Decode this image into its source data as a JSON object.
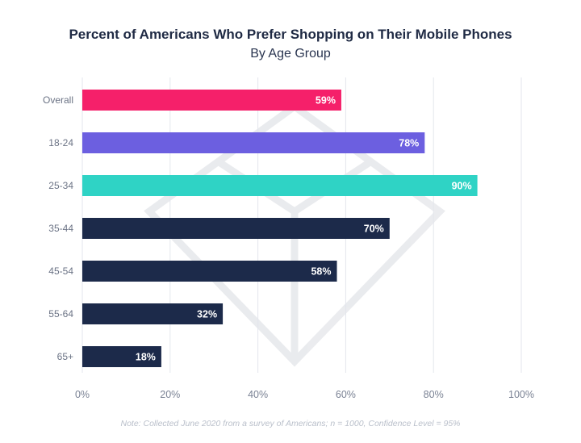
{
  "chart_data": {
    "type": "bar",
    "orientation": "horizontal",
    "title": "Percent of Americans Who Prefer Shopping on Their Mobile Phones",
    "subtitle": "By Age Group",
    "categories": [
      "Overall",
      "18-24",
      "25-34",
      "35-44",
      "45-54",
      "55-64",
      "65+"
    ],
    "values": [
      59,
      78,
      90,
      70,
      58,
      32,
      18
    ],
    "value_labels": [
      "59%",
      "78%",
      "90%",
      "70%",
      "58%",
      "32%",
      "18%"
    ],
    "colors": [
      "#f5206a",
      "#6c5fe0",
      "#2fd3c5",
      "#1c2a4a",
      "#1c2a4a",
      "#1c2a4a",
      "#1c2a4a"
    ],
    "xlim": [
      0,
      100
    ],
    "xticks": [
      0,
      20,
      40,
      60,
      80,
      100
    ],
    "xtick_labels": [
      "0%",
      "20%",
      "40%",
      "60%",
      "80%",
      "100%"
    ],
    "grid": true,
    "xlabel": "",
    "ylabel": "",
    "note": "Note: Collected June 2020 from a survey of Americans; n = 1000, Confidence Level = 95%"
  }
}
